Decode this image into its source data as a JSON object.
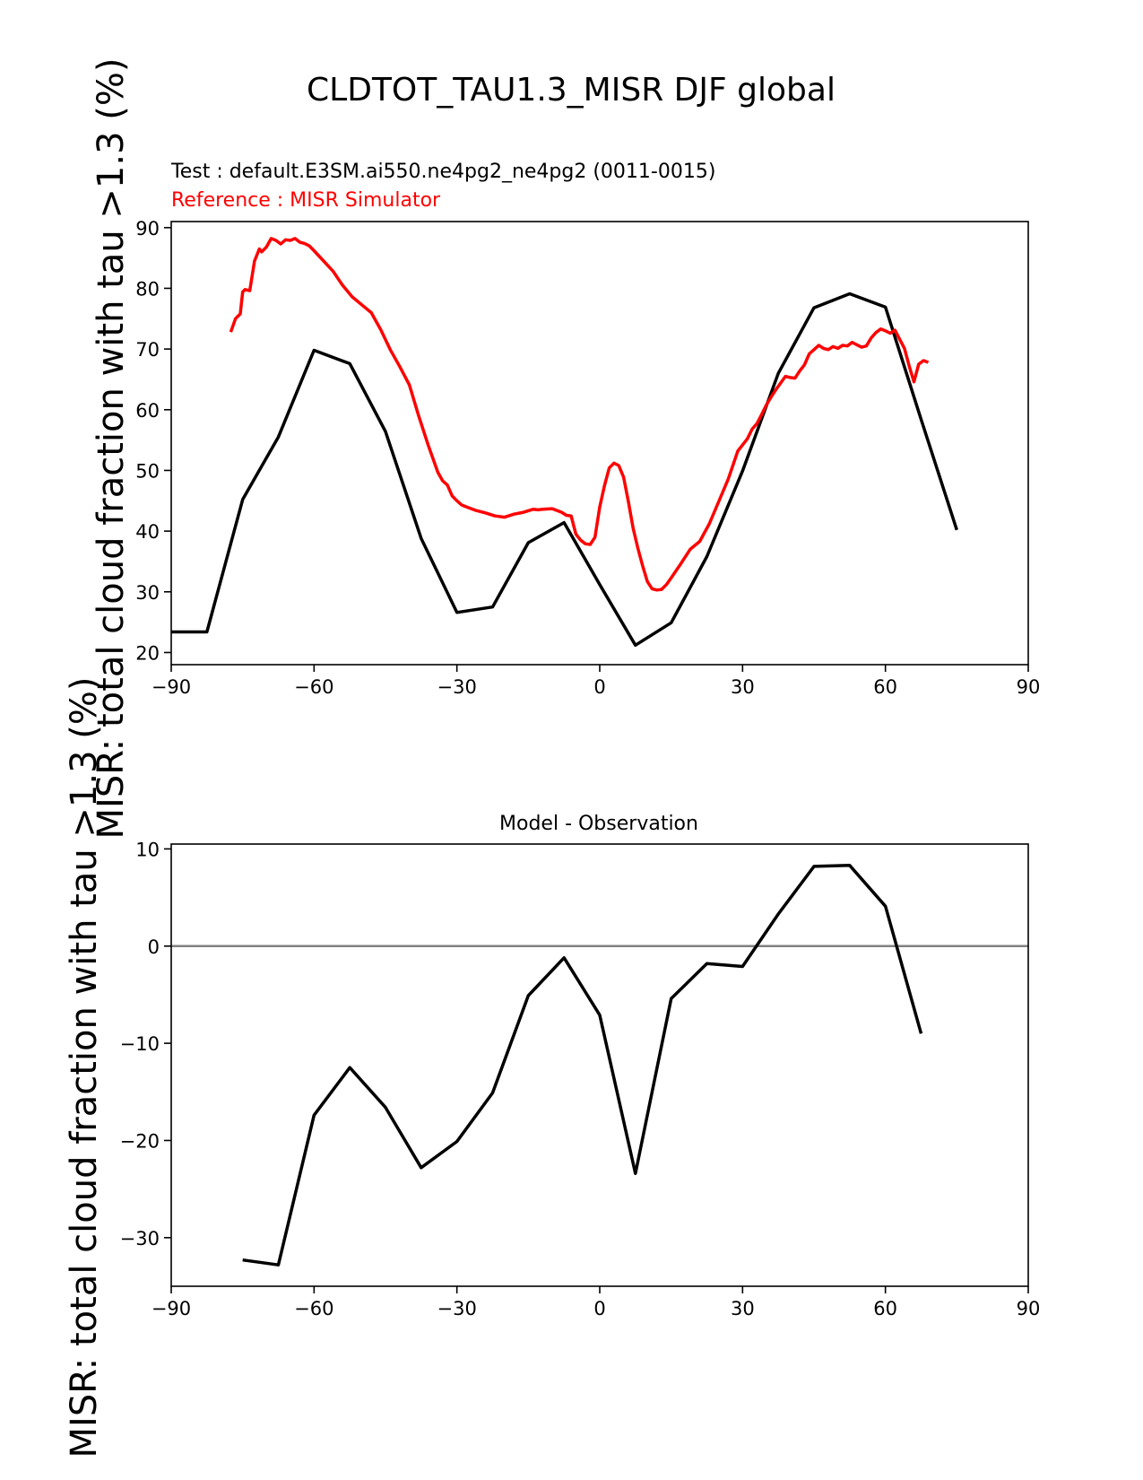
{
  "figure": {
    "title": "CLDTOT_TAU1.3_MISR DJF global",
    "test_label": "Test : default.E3SM.ai550.ne4pg2_ne4pg2 (0011-0015)",
    "reference_label": "Reference : MISR Simulator",
    "ylabel": "MISR: total cloud fraction with tau >1.3 (%)",
    "diff_title": "Model - Observation"
  },
  "colors": {
    "test": "#000000",
    "reference": "#ff0000",
    "zero_line": "#808080"
  },
  "chart_data": [
    {
      "type": "line",
      "title": "",
      "xlabel": "",
      "ylabel": "MISR: total cloud fraction with tau >1.3 (%)",
      "xlim": [
        -90,
        90
      ],
      "ylim": [
        18,
        91
      ],
      "xticks": [
        -90,
        -60,
        -30,
        0,
        30,
        60,
        90
      ],
      "yticks": [
        20,
        30,
        40,
        50,
        60,
        70,
        80,
        90
      ],
      "xtick_labels": [
        "−90",
        "−60",
        "−30",
        "0",
        "30",
        "60",
        "90"
      ],
      "ytick_labels": [
        "20",
        "30",
        "40",
        "50",
        "60",
        "70",
        "80",
        "90"
      ],
      "series": [
        {
          "name": "Test : default.E3SM.ai550.ne4pg2_ne4pg2 (0011-0015)",
          "color": "#000000",
          "x": [
            -90,
            -82.5,
            -75,
            -67.5,
            -60,
            -52.5,
            -45,
            -37.5,
            -30,
            -22.5,
            -15,
            -7.5,
            0,
            7.5,
            15,
            22.5,
            30,
            37.5,
            45,
            52.5,
            60,
            67.5,
            75
          ],
          "y": [
            23.4,
            23.4,
            45.2,
            55.5,
            69.8,
            67.6,
            56.4,
            38.8,
            26.6,
            27.5,
            38.1,
            41.4,
            31.2,
            21.2,
            24.9,
            35.8,
            49.9,
            66.0,
            76.8,
            79.1,
            76.9,
            58.4,
            40.2
          ]
        },
        {
          "name": "Reference : MISR Simulator",
          "color": "#ff0000",
          "x": [
            -77.5,
            -76.5,
            -75.5,
            -75,
            -74.5,
            -73.5,
            -72.5,
            -71.5,
            -71,
            -70,
            -69,
            -68,
            -67,
            -66,
            -65,
            -64,
            -63,
            -62,
            -61,
            -60,
            -58,
            -56,
            -54,
            -52,
            -50,
            -48,
            -46,
            -44,
            -42,
            -40,
            -38,
            -36,
            -34,
            -33,
            -32,
            -31,
            -30,
            -29,
            -28,
            -26,
            -24,
            -22,
            -20,
            -18,
            -16,
            -14,
            -13,
            -12,
            -10,
            -8,
            -7,
            -6,
            -5,
            -4,
            -3,
            -2,
            -1,
            0,
            1,
            2,
            3,
            4,
            5,
            6,
            7,
            8,
            9,
            10,
            11,
            12,
            13,
            14,
            15,
            17,
            19,
            21,
            23,
            25,
            27,
            29,
            31,
            32,
            33,
            34,
            35,
            36,
            37,
            38,
            39,
            40,
            41,
            42,
            43,
            44,
            45,
            46,
            47,
            48,
            49,
            50,
            51,
            52,
            53,
            54,
            55,
            56,
            57,
            58,
            59,
            60,
            61,
            62,
            63,
            64,
            65,
            66,
            67,
            68,
            69
          ],
          "y": [
            72.8,
            75.0,
            75.8,
            79.4,
            79.8,
            79.6,
            84.5,
            86.5,
            86.0,
            86.8,
            88.2,
            87.9,
            87.3,
            88.0,
            87.9,
            88.2,
            87.6,
            87.4,
            87.0,
            86.2,
            84.5,
            82.8,
            80.5,
            78.6,
            77.3,
            76.0,
            73.2,
            69.9,
            67.1,
            64.1,
            58.9,
            54.1,
            49.7,
            48.3,
            47.6,
            45.8,
            45.0,
            44.3,
            44.0,
            43.4,
            43.0,
            42.5,
            42.3,
            42.8,
            43.1,
            43.6,
            43.5,
            43.6,
            43.7,
            43.1,
            42.6,
            42.5,
            39.5,
            38.5,
            37.9,
            37.8,
            39.0,
            44.0,
            47.5,
            50.4,
            51.2,
            50.8,
            48.9,
            44.9,
            40.5,
            37.2,
            34.3,
            31.7,
            30.5,
            30.3,
            30.4,
            31.2,
            32.3,
            34.6,
            37.0,
            38.3,
            41.2,
            44.9,
            48.6,
            53.2,
            55.2,
            56.8,
            57.7,
            59.2,
            60.8,
            62.1,
            63.3,
            64.4,
            65.5,
            65.3,
            65.2,
            66.4,
            67.4,
            69.2,
            69.9,
            70.6,
            70.1,
            69.9,
            70.4,
            70.1,
            70.6,
            70.5,
            71.1,
            70.7,
            70.3,
            70.5,
            71.8,
            72.7,
            73.3,
            73.0,
            72.6,
            73.1,
            71.6,
            70.1,
            67.2,
            64.6,
            67.5,
            68.1,
            67.8
          ]
        }
      ]
    },
    {
      "type": "line",
      "title": "Model - Observation",
      "xlabel": "",
      "ylabel": "MISR: total cloud fraction with tau >1.3 (%)",
      "xlim": [
        -90,
        90
      ],
      "ylim": [
        -35,
        10.5
      ],
      "xticks": [
        -90,
        -60,
        -30,
        0,
        30,
        60,
        90
      ],
      "yticks": [
        -30,
        -20,
        -10,
        0,
        10
      ],
      "xtick_labels": [
        "−90",
        "−60",
        "−30",
        "0",
        "30",
        "60",
        "90"
      ],
      "ytick_labels": [
        "−30",
        "−20",
        "−10",
        "0",
        "10"
      ],
      "zero_line": true,
      "series": [
        {
          "color": "#000000",
          "x": [
            -75,
            -67.5,
            -60,
            -52.5,
            -45,
            -37.5,
            -30,
            -22.5,
            -15,
            -7.5,
            0,
            7.5,
            15,
            22.5,
            30,
            37.5,
            45,
            52.5,
            60,
            67.5
          ],
          "y": [
            -32.3,
            -32.8,
            -17.4,
            -12.5,
            -16.6,
            -22.8,
            -20.1,
            -15.1,
            -5.1,
            -1.2,
            -7.1,
            -23.4,
            -5.4,
            -1.8,
            -2.1,
            3.3,
            8.2,
            8.3,
            4.1,
            -9.0
          ]
        }
      ]
    }
  ]
}
